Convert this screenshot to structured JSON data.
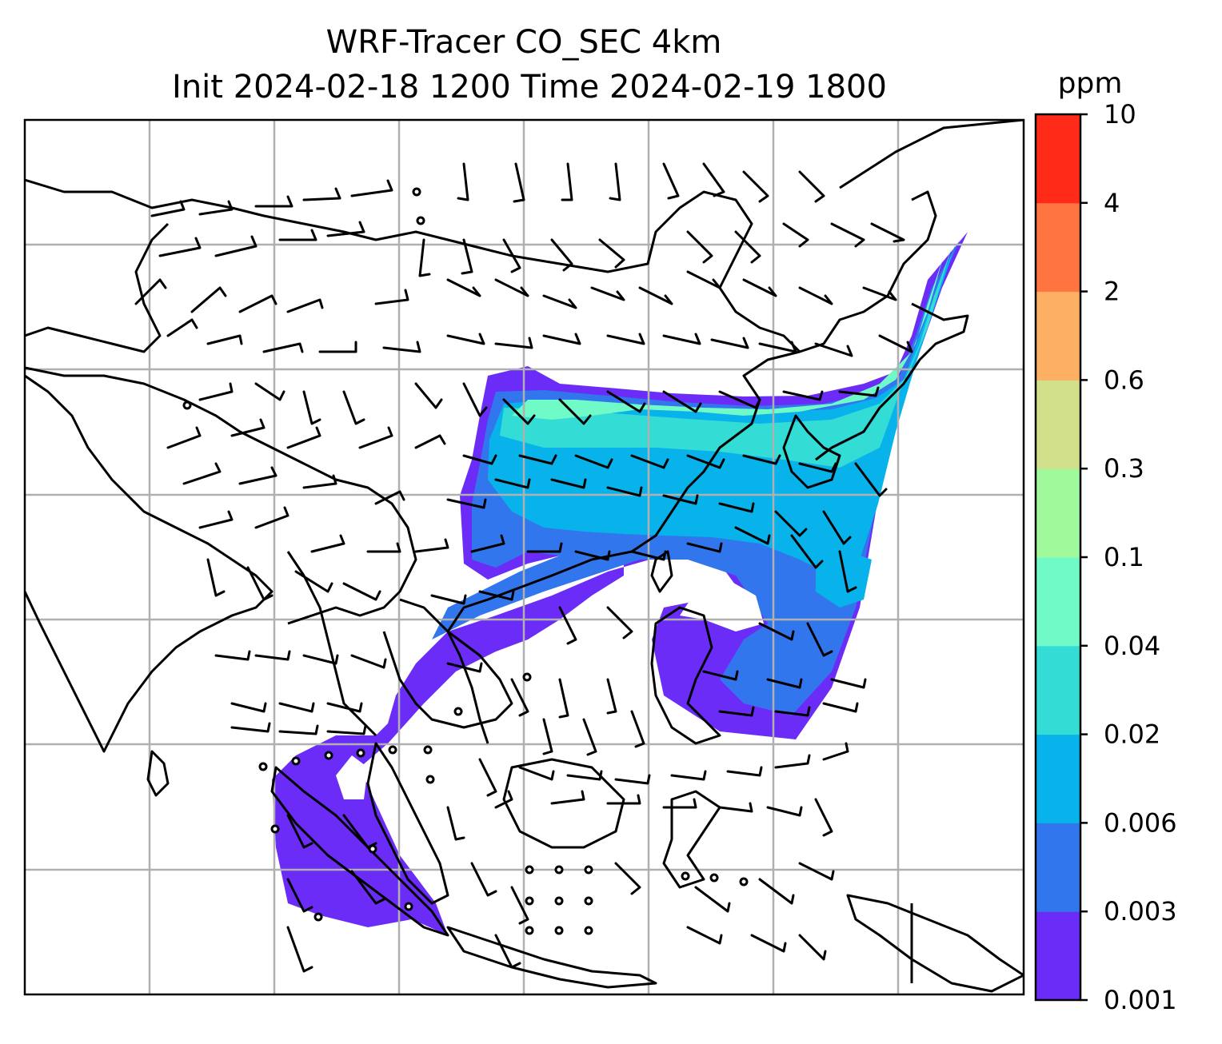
{
  "figure": {
    "title_line1": "WRF-Tracer CO_SEC 4km",
    "title_line2": "Init 2024-02-18 1200 Time 2024-02-19 1800"
  },
  "colorbar": {
    "unit": "ppm",
    "ticks": [
      "0.001",
      "0.003",
      "0.006",
      "0.02",
      "0.04",
      "0.1",
      "0.3",
      "0.6",
      "2",
      "4",
      "10"
    ],
    "colors": [
      "#6a2cf6",
      "#3276ee",
      "#08b2ea",
      "#33dcd4",
      "#6ffac8",
      "#a0fa9c",
      "#d2e08c",
      "#fdb064",
      "#ff7440",
      "#ff2a18"
    ]
  },
  "map": {
    "field": "CO_SEC tracer concentration",
    "overlay": "wind barbs",
    "gridlines": true,
    "land_outline_color": "#000000",
    "grid_color": "#b0b0b0"
  }
}
